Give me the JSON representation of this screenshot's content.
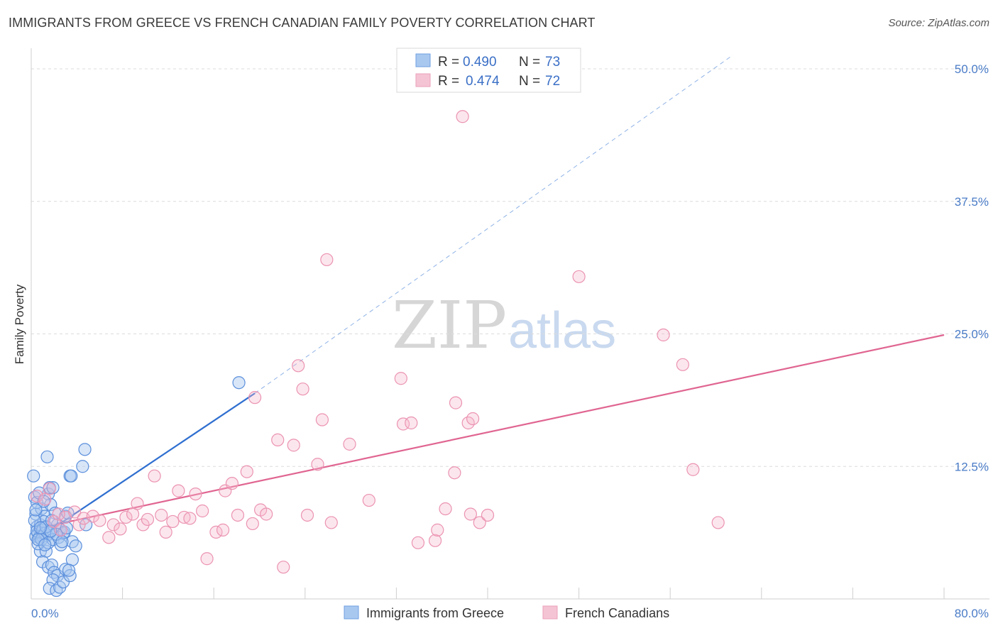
{
  "title": "IMMIGRANTS FROM GREECE VS FRENCH CANADIAN FAMILY POVERTY CORRELATION CHART",
  "source": "Source: ZipAtlas.com",
  "watermark": {
    "zip": "ZIP",
    "atlas": "atlas"
  },
  "legend": {
    "r_label": "R =",
    "n_label": "N =",
    "series": [
      {
        "r": "0.490",
        "n": "73"
      },
      {
        "r": "0.474",
        "n": "72"
      }
    ]
  },
  "bottom_legend": [
    "Immigrants from Greece",
    "French Canadians"
  ],
  "colors": {
    "blue": "#3a78d4",
    "blue_fill": "#a9c8f0",
    "pink": "#e8709a",
    "pink_fill": "#f5b8cc",
    "tick": "#4a7cc7"
  },
  "chart_data": {
    "type": "scatter",
    "ylabel": "Family Poverty",
    "xlim": [
      0,
      80
    ],
    "ylim": [
      0,
      50
    ],
    "x_tick_labels": [
      "0.0%",
      "80.0%"
    ],
    "y_ticks": [
      {
        "value": 12.5,
        "label": "12.5%"
      },
      {
        "value": 25.0,
        "label": "25.0%"
      },
      {
        "value": 37.5,
        "label": "37.5%"
      },
      {
        "value": 50.0,
        "label": "50.0%"
      }
    ],
    "series": [
      {
        "name": "Immigrants from Greece",
        "trend": {
          "x1": 0.3,
          "y1": 5.5,
          "x2": 19.6,
          "y2": 19.4,
          "x3": 61.5,
          "y3": 51.3
        },
        "points": [
          [
            0.2,
            11.6
          ],
          [
            0.3,
            9.6
          ],
          [
            0.4,
            8.0
          ],
          [
            0.5,
            6.8
          ],
          [
            0.6,
            6.2
          ],
          [
            0.4,
            5.9
          ],
          [
            0.7,
            5.8
          ],
          [
            0.5,
            6.4
          ],
          [
            0.8,
            7.0
          ],
          [
            1.0,
            6.5
          ],
          [
            0.9,
            8.5
          ],
          [
            1.2,
            7.8
          ],
          [
            1.4,
            6.0
          ],
          [
            1.6,
            6.2
          ],
          [
            1.5,
            9.9
          ],
          [
            1.4,
            13.4
          ],
          [
            1.6,
            10.5
          ],
          [
            1.9,
            10.5
          ],
          [
            1.7,
            8.9
          ],
          [
            2.1,
            8.1
          ],
          [
            2.3,
            7.0
          ],
          [
            2.5,
            6.6
          ],
          [
            2.8,
            6.2
          ],
          [
            3.0,
            7.8
          ],
          [
            3.2,
            8.1
          ],
          [
            3.4,
            11.6
          ],
          [
            3.5,
            11.6
          ],
          [
            3.6,
            5.4
          ],
          [
            3.9,
            5.0
          ],
          [
            4.5,
            12.5
          ],
          [
            4.7,
            14.1
          ],
          [
            4.8,
            7.0
          ],
          [
            1.0,
            5.9
          ],
          [
            1.2,
            6.2
          ],
          [
            0.8,
            4.5
          ],
          [
            1.3,
            4.5
          ],
          [
            1.0,
            3.5
          ],
          [
            1.5,
            3.0
          ],
          [
            1.8,
            3.2
          ],
          [
            2.0,
            2.5
          ],
          [
            2.3,
            2.2
          ],
          [
            1.9,
            1.8
          ],
          [
            1.6,
            1.0
          ],
          [
            2.2,
            0.8
          ],
          [
            2.5,
            1.1
          ],
          [
            2.8,
            1.6
          ],
          [
            3.0,
            2.8
          ],
          [
            3.4,
            2.2
          ],
          [
            3.6,
            3.7
          ],
          [
            0.6,
            5.2
          ],
          [
            0.9,
            5.6
          ],
          [
            1.1,
            7.3
          ],
          [
            1.3,
            6.8
          ],
          [
            1.5,
            5.3
          ],
          [
            1.9,
            5.6
          ],
          [
            2.4,
            5.8
          ],
          [
            2.6,
            5.1
          ],
          [
            2.9,
            6.3
          ],
          [
            3.1,
            6.7
          ],
          [
            0.3,
            7.4
          ],
          [
            0.5,
            9.1
          ],
          [
            0.7,
            10.0
          ],
          [
            1.1,
            9.2
          ],
          [
            1.8,
            7.4
          ],
          [
            2.2,
            6.1
          ],
          [
            2.7,
            5.4
          ],
          [
            3.3,
            2.7
          ],
          [
            1.7,
            6.4
          ],
          [
            0.8,
            6.7
          ],
          [
            0.4,
            8.4
          ],
          [
            18.2,
            20.4
          ],
          [
            0.6,
            5.6
          ],
          [
            1.2,
            5.1
          ]
        ]
      },
      {
        "name": "French Canadians",
        "trend": {
          "x1": 0.3,
          "y1": 6.6,
          "x2": 80.0,
          "y2": 24.9
        },
        "points": [
          [
            0.5,
            9.7
          ],
          [
            1.2,
            9.4
          ],
          [
            2.0,
            7.3
          ],
          [
            2.6,
            6.5
          ],
          [
            3.0,
            7.7
          ],
          [
            3.8,
            8.2
          ],
          [
            4.2,
            7.0
          ],
          [
            4.6,
            7.6
          ],
          [
            5.4,
            7.8
          ],
          [
            6.0,
            7.4
          ],
          [
            6.8,
            5.8
          ],
          [
            7.2,
            7.0
          ],
          [
            7.8,
            6.6
          ],
          [
            8.3,
            7.7
          ],
          [
            8.9,
            8.0
          ],
          [
            9.3,
            9.0
          ],
          [
            9.8,
            7.0
          ],
          [
            10.2,
            7.5
          ],
          [
            10.8,
            11.6
          ],
          [
            11.4,
            7.9
          ],
          [
            11.8,
            6.3
          ],
          [
            12.4,
            7.3
          ],
          [
            12.9,
            10.2
          ],
          [
            13.4,
            7.7
          ],
          [
            13.9,
            7.6
          ],
          [
            14.4,
            9.9
          ],
          [
            15.0,
            8.3
          ],
          [
            15.4,
            3.8
          ],
          [
            16.2,
            6.3
          ],
          [
            16.8,
            6.5
          ],
          [
            17.0,
            10.2
          ],
          [
            17.6,
            10.9
          ],
          [
            18.1,
            7.9
          ],
          [
            18.9,
            12.0
          ],
          [
            19.4,
            7.1
          ],
          [
            19.6,
            19.0
          ],
          [
            20.1,
            8.4
          ],
          [
            20.6,
            8.0
          ],
          [
            21.6,
            15.0
          ],
          [
            22.1,
            3.0
          ],
          [
            23.0,
            14.5
          ],
          [
            23.4,
            22.0
          ],
          [
            23.8,
            19.8
          ],
          [
            24.2,
            7.9
          ],
          [
            25.1,
            12.7
          ],
          [
            25.5,
            16.9
          ],
          [
            25.9,
            32.0
          ],
          [
            26.3,
            7.2
          ],
          [
            27.9,
            14.6
          ],
          [
            29.6,
            9.3
          ],
          [
            32.4,
            20.8
          ],
          [
            32.6,
            16.5
          ],
          [
            33.3,
            16.6
          ],
          [
            33.9,
            5.3
          ],
          [
            35.4,
            5.5
          ],
          [
            35.6,
            6.5
          ],
          [
            36.3,
            8.5
          ],
          [
            37.1,
            11.9
          ],
          [
            37.2,
            18.5
          ],
          [
            37.8,
            45.5
          ],
          [
            38.3,
            16.6
          ],
          [
            38.7,
            17.0
          ],
          [
            38.5,
            8.0
          ],
          [
            39.3,
            7.2
          ],
          [
            40.0,
            7.9
          ],
          [
            48.0,
            30.4
          ],
          [
            55.4,
            24.9
          ],
          [
            57.1,
            22.1
          ],
          [
            58.0,
            12.2
          ],
          [
            60.2,
            7.2
          ],
          [
            2.4,
            8.0
          ],
          [
            1.6,
            10.4
          ]
        ]
      }
    ]
  }
}
